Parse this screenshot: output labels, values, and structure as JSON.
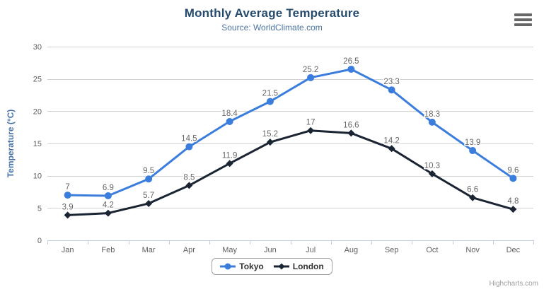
{
  "chart_data": {
    "type": "line",
    "title": "Monthly Average Temperature",
    "subtitle": "Source: WorldClimate.com",
    "categories": [
      "Jan",
      "Feb",
      "Mar",
      "Apr",
      "May",
      "Jun",
      "Jul",
      "Aug",
      "Sep",
      "Oct",
      "Nov",
      "Dec"
    ],
    "series": [
      {
        "name": "Tokyo",
        "color": "#3b7ddd",
        "marker": "circle",
        "values": [
          7,
          6.9,
          9.5,
          14.5,
          18.4,
          21.5,
          25.2,
          26.5,
          23.3,
          18.3,
          13.9,
          9.6
        ]
      },
      {
        "name": "London",
        "color": "#1a2433",
        "marker": "diamond",
        "values": [
          3.9,
          4.2,
          5.7,
          8.5,
          11.9,
          15.2,
          17,
          16.6,
          14.2,
          10.3,
          6.6,
          4.8
        ]
      }
    ],
    "xlabel": "",
    "ylabel": "Temperature (°C)",
    "ylim": [
      0,
      30
    ],
    "ytick_interval": 5,
    "grid": true,
    "data_labels": true,
    "legend_position": "bottom"
  },
  "ui": {
    "credits": "Highcharts.com",
    "export_menu_icon": "hamburger-menu-icon"
  },
  "theme": {
    "title_color": "#274b6d",
    "subtitle_color": "#4d759e",
    "axis_title_color": "#4572a7",
    "axis_label_color": "#606060",
    "data_label_color": "#666666",
    "gridline_color": "#d2d2d2",
    "axis_line_color": "#c0d0e0",
    "legend_border_color": "#a0a0a0",
    "legend_text_color": "#333333",
    "credits_color": "#a0a0a0",
    "menu_icon_color": "#666666",
    "background": "#ffffff"
  }
}
